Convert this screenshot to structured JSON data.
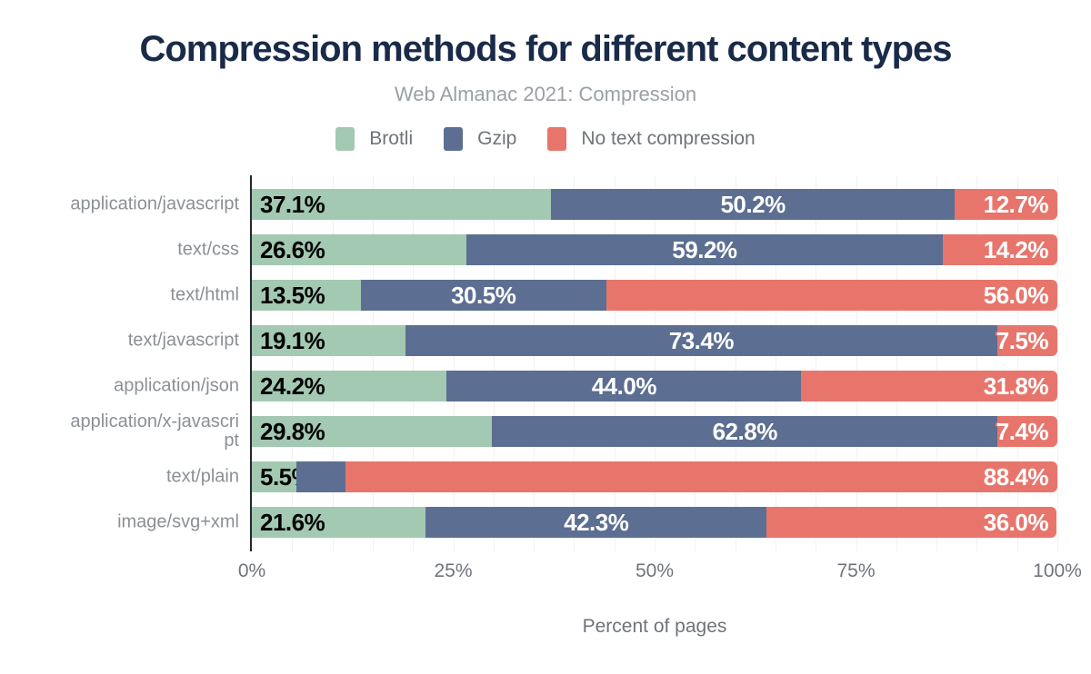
{
  "chart_data": {
    "type": "bar",
    "stacked": true,
    "orientation": "horizontal",
    "title": "Compression methods for different content types",
    "subtitle": "Web Almanac 2021: Compression",
    "xlabel": "Percent of pages",
    "xlim": [
      0,
      100
    ],
    "grid_step": 5,
    "grid": true,
    "legend_position": "top",
    "x_ticks": [
      {
        "label": "0%",
        "value": 0
      },
      {
        "label": "25%",
        "value": 25
      },
      {
        "label": "50%",
        "value": 50
      },
      {
        "label": "75%",
        "value": 75
      },
      {
        "label": "100%",
        "value": 100
      }
    ],
    "series_meta": [
      {
        "name": "Brotli",
        "color": "#a3c9b2"
      },
      {
        "name": "Gzip",
        "color": "#5c6e91"
      },
      {
        "name": "No text compression",
        "color": "#e8756c"
      }
    ],
    "categories": [
      "application/javascript",
      "text/css",
      "text/html",
      "text/javascript",
      "application/json",
      "application/x-javascript",
      "text/plain",
      "image/svg+xml"
    ],
    "rows": [
      {
        "category": "application/javascript",
        "values": [
          37.1,
          50.2,
          12.7
        ],
        "labels": [
          "37.1%",
          "50.2%",
          "12.7%"
        ]
      },
      {
        "category": "text/css",
        "values": [
          26.6,
          59.2,
          14.2
        ],
        "labels": [
          "26.6%",
          "59.2%",
          "14.2%"
        ]
      },
      {
        "category": "text/html",
        "values": [
          13.5,
          30.5,
          56.0
        ],
        "labels": [
          "13.5%",
          "30.5%",
          "56.0%"
        ]
      },
      {
        "category": "text/javascript",
        "values": [
          19.1,
          73.4,
          7.5
        ],
        "labels": [
          "19.1%",
          "73.4%",
          "7.5%"
        ]
      },
      {
        "category": "application/json",
        "values": [
          24.2,
          44.0,
          31.8
        ],
        "labels": [
          "24.2%",
          "44.0%",
          "31.8%"
        ]
      },
      {
        "category": "application/x-javascript",
        "values": [
          29.8,
          62.8,
          7.4
        ],
        "labels": [
          "29.8%",
          "62.8%",
          "7.4%"
        ]
      },
      {
        "category": "text/plain",
        "values": [
          5.5,
          6.1,
          88.4
        ],
        "labels": [
          "5.5%",
          null,
          "88.4%"
        ]
      },
      {
        "category": "image/svg+xml",
        "values": [
          21.6,
          42.3,
          36.0
        ],
        "labels": [
          "21.6%",
          "42.3%",
          "36.0%"
        ]
      }
    ]
  },
  "colors": {
    "title": "#1a2b49",
    "subtitle": "#9aa0a6",
    "axis_text": "#6f747b",
    "category_text": "#8b9095",
    "gridline": "#f1f1f1",
    "axis_line": "#23272f",
    "background": "#ffffff"
  }
}
